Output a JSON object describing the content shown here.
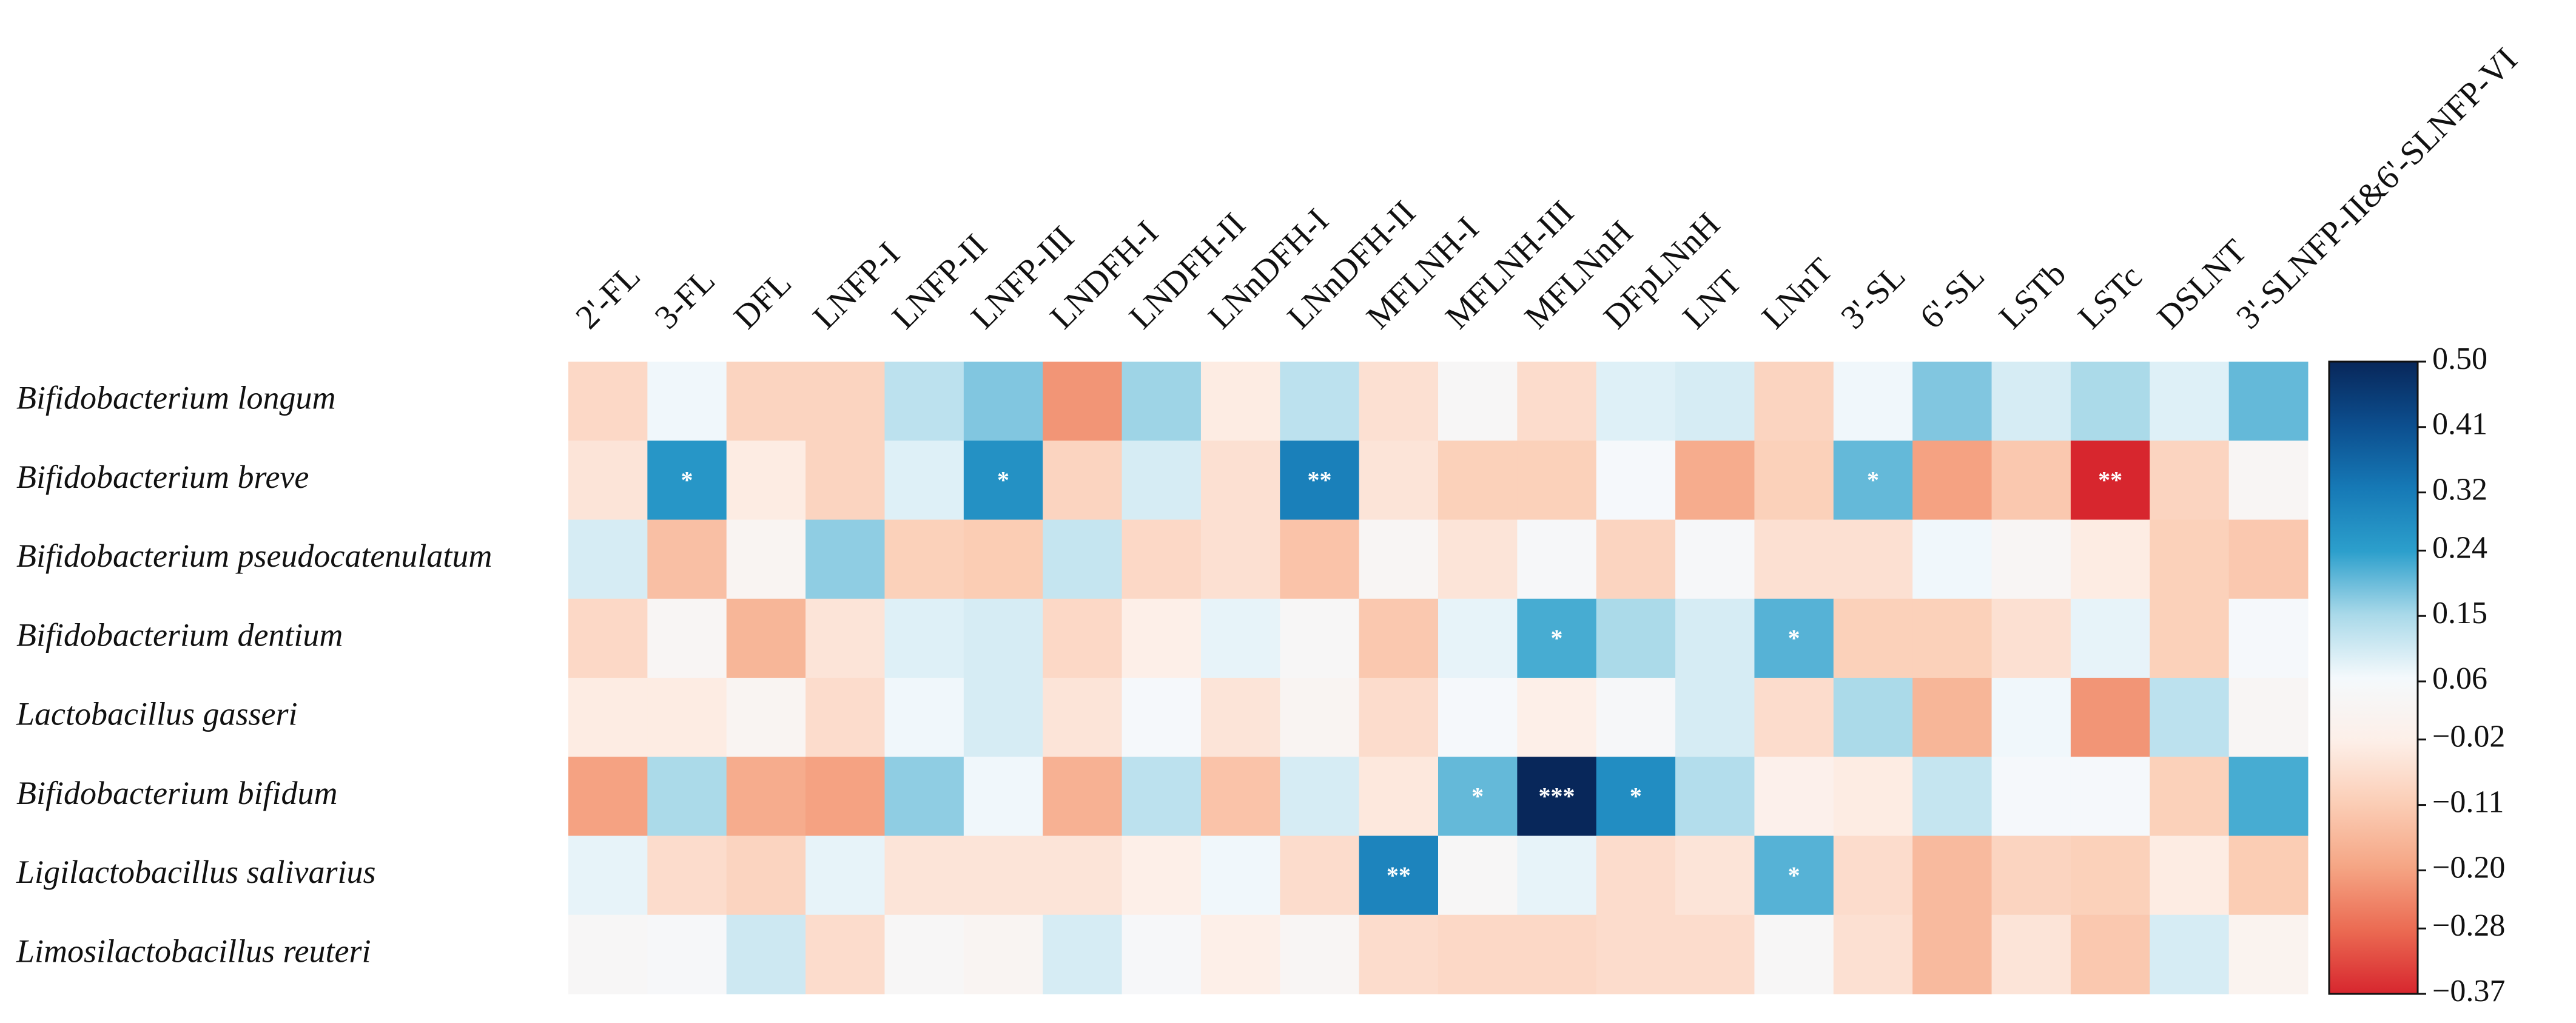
{
  "chart_data": {
    "type": "heatmap",
    "categories": [
      "2'-FL",
      "3-FL",
      "DFL",
      "LNFP-I",
      "LNFP-II",
      "LNFP-III",
      "LNDFH-I",
      "LNDFH-II",
      "LNnDFH-I",
      "LNnDFH-II",
      "MFLNH-I",
      "MFLNH-III",
      "MFLNnH",
      "DFpLNnH",
      "LNT",
      "LNnT",
      "3'-SL",
      "6'-SL",
      "LSTb",
      "LSTc",
      "DSLNT",
      "3'-SLNFP-II&6'-SLNFP-VI"
    ],
    "rows": [
      "Bifidobacterium longum",
      "Bifidobacterium breve",
      "Bifidobacterium pseudocatenulatum",
      "Bifidobacterium dentium",
      "Lactobacillus gasseri",
      "Bifidobacterium bifidum",
      "Ligilactobacillus salivarius",
      "Limosilactobacillus reuteri"
    ],
    "values": [
      [
        -0.08,
        0.07,
        -0.09,
        -0.09,
        0.13,
        0.18,
        -0.22,
        0.16,
        -0.03,
        0.13,
        -0.06,
        0.04,
        -0.07,
        0.09,
        0.1,
        -0.09,
        0.07,
        0.18,
        0.1,
        0.15,
        0.09,
        0.2
      ],
      [
        -0.05,
        0.26,
        -0.03,
        -0.09,
        0.09,
        0.27,
        -0.09,
        0.1,
        -0.06,
        0.31,
        -0.05,
        -0.1,
        -0.1,
        0.06,
        -0.18,
        -0.1,
        0.2,
        -0.2,
        -0.12,
        -0.37,
        -0.09,
        0.03
      ],
      [
        0.1,
        -0.14,
        0.02,
        0.17,
        -0.1,
        -0.11,
        0.12,
        -0.08,
        -0.06,
        -0.13,
        0.03,
        -0.05,
        0.05,
        -0.09,
        0.05,
        -0.06,
        -0.06,
        0.07,
        0.03,
        -0.03,
        -0.1,
        -0.12
      ],
      [
        -0.08,
        0.03,
        -0.16,
        -0.05,
        0.09,
        0.1,
        -0.08,
        -0.02,
        0.08,
        0.04,
        -0.12,
        0.08,
        0.22,
        0.15,
        0.1,
        0.21,
        -0.1,
        -0.1,
        -0.06,
        0.08,
        -0.1,
        0.06
      ],
      [
        -0.03,
        -0.03,
        0.02,
        -0.07,
        0.07,
        0.1,
        -0.05,
        0.06,
        -0.05,
        0.02,
        -0.07,
        0.06,
        -0.02,
        0.05,
        0.1,
        -0.07,
        0.15,
        -0.16,
        0.07,
        -0.22,
        0.13,
        0.03
      ],
      [
        -0.2,
        0.15,
        -0.18,
        -0.2,
        0.17,
        0.07,
        -0.17,
        0.13,
        -0.13,
        0.1,
        -0.04,
        0.2,
        0.5,
        0.28,
        0.14,
        -0.01,
        -0.03,
        0.12,
        0.06,
        0.06,
        -0.1,
        0.22
      ],
      [
        0.08,
        -0.07,
        -0.09,
        0.08,
        -0.05,
        -0.05,
        -0.05,
        -0.02,
        0.07,
        -0.07,
        0.3,
        0.04,
        0.08,
        -0.07,
        -0.05,
        0.21,
        -0.07,
        -0.15,
        -0.09,
        -0.1,
        -0.03,
        -0.11
      ],
      [
        0.04,
        0.05,
        0.11,
        -0.07,
        0.04,
        0.02,
        0.1,
        0.05,
        -0.02,
        0.03,
        -0.07,
        -0.08,
        -0.08,
        -0.07,
        -0.07,
        0.04,
        -0.06,
        -0.15,
        -0.05,
        -0.12,
        0.1,
        0.01
      ]
    ],
    "significance": [
      [
        null,
        null,
        null,
        null,
        null,
        null,
        null,
        null,
        null,
        null,
        null,
        null,
        null,
        null,
        null,
        null,
        null,
        null,
        null,
        null,
        null,
        null
      ],
      [
        null,
        "*",
        null,
        null,
        null,
        "*",
        null,
        null,
        null,
        "**",
        null,
        null,
        null,
        null,
        null,
        null,
        "*",
        null,
        null,
        "**",
        null,
        null
      ],
      [
        null,
        null,
        null,
        null,
        null,
        null,
        null,
        null,
        null,
        null,
        null,
        null,
        null,
        null,
        null,
        null,
        null,
        null,
        null,
        null,
        null,
        null
      ],
      [
        null,
        null,
        null,
        null,
        null,
        null,
        null,
        null,
        null,
        null,
        null,
        null,
        "*",
        null,
        null,
        "*",
        null,
        null,
        null,
        null,
        null,
        null
      ],
      [
        null,
        null,
        null,
        null,
        null,
        null,
        null,
        null,
        null,
        null,
        null,
        null,
        null,
        null,
        null,
        null,
        null,
        null,
        null,
        null,
        null,
        null
      ],
      [
        null,
        null,
        null,
        null,
        null,
        null,
        null,
        null,
        null,
        null,
        null,
        "*",
        "***",
        "*",
        null,
        null,
        null,
        null,
        null,
        null,
        null,
        null
      ],
      [
        null,
        null,
        null,
        null,
        null,
        null,
        null,
        null,
        null,
        null,
        "**",
        null,
        null,
        null,
        null,
        "*",
        null,
        null,
        null,
        null,
        null,
        null
      ],
      [
        null,
        null,
        null,
        null,
        null,
        null,
        null,
        null,
        null,
        null,
        null,
        null,
        null,
        null,
        null,
        null,
        null,
        null,
        null,
        null,
        null,
        null
      ]
    ],
    "zlim": [
      -0.37,
      0.5
    ],
    "zticks": [
      {
        "value": 0.5,
        "label": "0.50"
      },
      0.41,
      0.32,
      0.24,
      0.15,
      0.06,
      {
        "value": -0.02,
        "label": "−0.02"
      },
      {
        "value": -0.11,
        "label": "−0.11"
      },
      {
        "value": -0.2,
        "label": "−0.20"
      },
      {
        "value": -0.28,
        "label": "−0.28"
      },
      {
        "value": -0.37,
        "label": "−0.37"
      }
    ],
    "colorscale": [
      "#d7262e",
      "#eb6a52",
      "#f5a584",
      "#fbcdb5",
      "#fdefe8",
      "#f4f9fc",
      "#a9d9e9",
      "#2c9fcc",
      "#1679b6",
      "#0c4e8e",
      "#08275a"
    ]
  }
}
